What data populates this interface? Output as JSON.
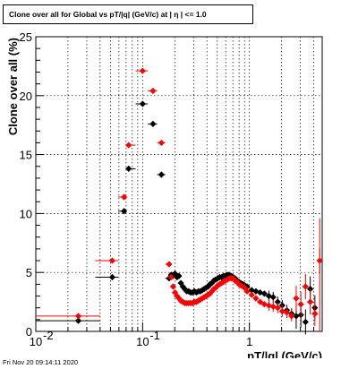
{
  "title": "Clone  over all for Global vs pT/|q| (GeV/c) at |  η | <= 1.0",
  "footer": "Fri Nov 20 09:14:11 2020",
  "chart_data": {
    "type": "scatter",
    "title": "Clone  over all for Global vs pT/|q| (GeV/c) at |  η | <= 1.0",
    "xlabel": "pT/|q| (GeV/c)",
    "ylabel": "Clone  over all (%)",
    "xscale": "log",
    "xlim": [
      0.01,
      4.8
    ],
    "ylim": [
      0,
      25
    ],
    "grid": true,
    "x_tick_labels": [
      {
        "v": 0.01,
        "label": "10",
        "exp": "-2"
      },
      {
        "v": 0.1,
        "label": "10",
        "exp": "-1"
      },
      {
        "v": 1,
        "label": "1",
        "exp": ""
      }
    ],
    "y_ticks": [
      0,
      5,
      10,
      15,
      20,
      25
    ],
    "series": [
      {
        "color": "#000000",
        "points": [
          [
            0.025,
            0.9
          ],
          [
            0.052,
            4.6
          ],
          [
            0.067,
            10.2
          ],
          [
            0.074,
            13.8
          ],
          [
            0.1,
            19.3
          ],
          [
            0.125,
            17.6
          ],
          [
            0.15,
            13.3
          ],
          [
            0.177,
            4.5
          ],
          [
            0.185,
            4.8
          ],
          [
            0.193,
            4.7
          ],
          [
            0.201,
            4.9
          ],
          [
            0.21,
            4.6
          ],
          [
            0.219,
            4.7
          ],
          [
            0.228,
            4.1
          ],
          [
            0.238,
            3.8
          ],
          [
            0.248,
            3.6
          ],
          [
            0.259,
            3.4
          ],
          [
            0.27,
            3.4
          ],
          [
            0.281,
            3.3
          ],
          [
            0.293,
            3.3
          ],
          [
            0.306,
            3.4
          ],
          [
            0.319,
            3.3
          ],
          [
            0.333,
            3.4
          ],
          [
            0.347,
            3.4
          ],
          [
            0.362,
            3.5
          ],
          [
            0.377,
            3.6
          ],
          [
            0.393,
            3.7
          ],
          [
            0.41,
            3.8
          ],
          [
            0.427,
            4.0
          ],
          [
            0.445,
            4.1
          ],
          [
            0.464,
            4.3
          ],
          [
            0.484,
            4.4
          ],
          [
            0.505,
            4.5
          ],
          [
            0.526,
            4.6
          ],
          [
            0.549,
            4.6
          ],
          [
            0.572,
            4.7
          ],
          [
            0.596,
            4.7
          ],
          [
            0.622,
            4.8
          ],
          [
            0.648,
            4.8
          ],
          [
            0.676,
            4.7
          ],
          [
            0.704,
            4.6
          ],
          [
            0.734,
            4.5
          ],
          [
            0.766,
            4.3
          ],
          [
            0.798,
            4.2
          ],
          [
            0.832,
            4.1
          ],
          [
            0.868,
            4.0
          ],
          [
            0.905,
            3.9
          ],
          [
            0.95,
            3.8
          ],
          [
            1.05,
            3.5
          ],
          [
            1.15,
            3.4
          ],
          [
            1.26,
            3.3
          ],
          [
            1.38,
            3.2
          ],
          [
            1.52,
            3.0
          ],
          [
            1.67,
            2.9
          ],
          [
            1.84,
            2.5
          ],
          [
            2.03,
            2.2
          ],
          [
            2.24,
            1.8
          ],
          [
            2.48,
            1.5
          ],
          [
            2.74,
            1.3
          ],
          [
            3.03,
            1.4
          ],
          [
            3.35,
            0.8
          ],
          [
            3.71,
            3.6
          ],
          [
            4.1,
            2.0
          ]
        ]
      },
      {
        "color": "#ff0000",
        "points": [
          [
            0.025,
            1.3
          ],
          [
            0.052,
            6.0
          ],
          [
            0.067,
            11.4
          ],
          [
            0.074,
            15.8
          ],
          [
            0.1,
            22.1
          ],
          [
            0.125,
            20.4
          ],
          [
            0.15,
            16.0
          ],
          [
            0.177,
            5.7
          ],
          [
            0.185,
            4.6
          ],
          [
            0.193,
            3.8
          ],
          [
            0.201,
            3.3
          ],
          [
            0.21,
            3.0
          ],
          [
            0.219,
            2.8
          ],
          [
            0.228,
            2.6
          ],
          [
            0.238,
            2.5
          ],
          [
            0.248,
            2.4
          ],
          [
            0.259,
            2.4
          ],
          [
            0.27,
            2.4
          ],
          [
            0.281,
            2.4
          ],
          [
            0.293,
            2.4
          ],
          [
            0.306,
            2.5
          ],
          [
            0.319,
            2.5
          ],
          [
            0.333,
            2.6
          ],
          [
            0.347,
            2.7
          ],
          [
            0.362,
            2.8
          ],
          [
            0.377,
            2.9
          ],
          [
            0.393,
            3.0
          ],
          [
            0.41,
            3.1
          ],
          [
            0.427,
            3.2
          ],
          [
            0.445,
            3.4
          ],
          [
            0.464,
            3.6
          ],
          [
            0.484,
            3.7
          ],
          [
            0.505,
            3.9
          ],
          [
            0.526,
            4.0
          ],
          [
            0.549,
            4.1
          ],
          [
            0.572,
            4.2
          ],
          [
            0.596,
            4.3
          ],
          [
            0.622,
            4.4
          ],
          [
            0.648,
            4.5
          ],
          [
            0.676,
            4.5
          ],
          [
            0.704,
            4.5
          ],
          [
            0.734,
            4.3
          ],
          [
            0.766,
            4.2
          ],
          [
            0.798,
            4.0
          ],
          [
            0.832,
            3.9
          ],
          [
            0.868,
            3.8
          ],
          [
            0.905,
            3.7
          ],
          [
            0.95,
            3.4
          ],
          [
            1.05,
            3.1
          ],
          [
            1.15,
            2.8
          ],
          [
            1.26,
            2.5
          ],
          [
            1.38,
            2.3
          ],
          [
            1.52,
            2.2
          ],
          [
            1.67,
            2.1
          ],
          [
            1.84,
            2.0
          ],
          [
            2.03,
            1.7
          ],
          [
            2.24,
            1.6
          ],
          [
            2.48,
            1.3
          ],
          [
            2.74,
            2.8
          ],
          [
            3.03,
            2.3
          ],
          [
            3.35,
            3.8
          ],
          [
            3.71,
            2.5
          ],
          [
            4.1,
            1.5
          ],
          [
            4.55,
            6.0
          ]
        ]
      }
    ]
  }
}
